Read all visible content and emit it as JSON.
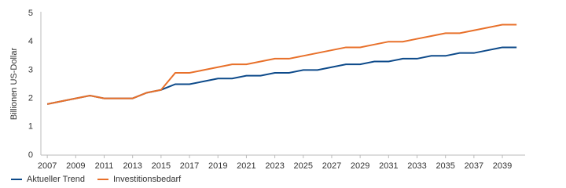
{
  "chart_data": {
    "type": "line",
    "y_label": "Billionen US-Dollar",
    "x": [
      2007,
      2008,
      2009,
      2010,
      2011,
      2012,
      2013,
      2014,
      2015,
      2016,
      2017,
      2018,
      2019,
      2020,
      2021,
      2022,
      2023,
      2024,
      2025,
      2026,
      2027,
      2028,
      2029,
      2030,
      2031,
      2032,
      2033,
      2034,
      2035,
      2036,
      2037,
      2038,
      2039,
      2040
    ],
    "series": [
      {
        "name": "Aktueller Trend",
        "color": "#0d4a8a",
        "values": [
          1.8,
          1.9,
          2.0,
          2.1,
          2.0,
          2.0,
          2.0,
          2.2,
          2.3,
          2.5,
          2.5,
          2.6,
          2.7,
          2.7,
          2.8,
          2.8,
          2.9,
          2.9,
          3.0,
          3.0,
          3.1,
          3.2,
          3.2,
          3.3,
          3.3,
          3.4,
          3.4,
          3.5,
          3.5,
          3.6,
          3.6,
          3.7,
          3.8,
          3.8
        ]
      },
      {
        "name": "Investitionsbedarf",
        "color": "#e8702a",
        "values": [
          1.8,
          1.9,
          2.0,
          2.1,
          2.0,
          2.0,
          2.0,
          2.2,
          2.3,
          2.9,
          2.9,
          3.0,
          3.1,
          3.2,
          3.2,
          3.3,
          3.4,
          3.4,
          3.5,
          3.6,
          3.7,
          3.8,
          3.8,
          3.9,
          4.0,
          4.0,
          4.1,
          4.2,
          4.3,
          4.3,
          4.4,
          4.5,
          4.6,
          4.6
        ]
      }
    ],
    "xlim": [
      2006.55,
      2040.6
    ],
    "xticks": [
      2007,
      2009,
      2011,
      2013,
      2015,
      2017,
      2019,
      2021,
      2023,
      2025,
      2027,
      2029,
      2031,
      2033,
      2035,
      2037,
      2039
    ],
    "ylim": [
      0,
      5
    ],
    "yticks": [
      0,
      1,
      2,
      3,
      4,
      5
    ],
    "legend": "bottom-left",
    "grid": false
  }
}
